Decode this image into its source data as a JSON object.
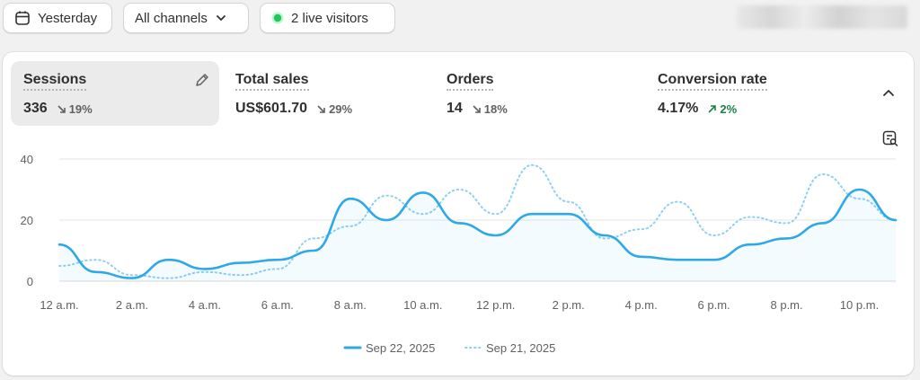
{
  "toolbar": {
    "date_label": "Yesterday",
    "channel_label": "All channels",
    "live_label": "2 live visitors"
  },
  "metrics": [
    {
      "label": "Sessions",
      "value": "336",
      "delta": "19%",
      "direction": "down"
    },
    {
      "label": "Total sales",
      "value": "US$601.70",
      "delta": "29%",
      "direction": "down"
    },
    {
      "label": "Orders",
      "value": "14",
      "delta": "18%",
      "direction": "down"
    },
    {
      "label": "Conversion rate",
      "value": "4.17%",
      "delta": "2%",
      "direction": "up"
    }
  ],
  "colors": {
    "current": "#2ea8e6",
    "previous": "#8fd0f0",
    "live_dot": "#22c55e",
    "up": "#1a8245",
    "grid": "#e6e6e6"
  },
  "chart_data": {
    "type": "line",
    "x": [
      0,
      1,
      2,
      3,
      4,
      5,
      6,
      7,
      8,
      9,
      10,
      11,
      12,
      13,
      14,
      15,
      16,
      17,
      18,
      19,
      20,
      21,
      22,
      23
    ],
    "x_tick_labels": [
      "12 a.m.",
      "2 a.m.",
      "4 a.m.",
      "6 a.m.",
      "8 a.m.",
      "10 a.m.",
      "12 p.m.",
      "2 p.m.",
      "4 p.m.",
      "6 p.m.",
      "8 p.m.",
      "10 p.m."
    ],
    "x_tick_hours": [
      0,
      2,
      4,
      6,
      8,
      10,
      12,
      14,
      16,
      18,
      20,
      22
    ],
    "y_ticks": [
      0,
      20,
      40
    ],
    "ylim": [
      0,
      40
    ],
    "series": [
      {
        "name": "Sep 22, 2025",
        "style": "solid",
        "values": [
          12,
          3,
          1,
          7,
          4,
          6,
          7,
          10,
          27,
          20,
          29,
          19,
          15,
          22,
          22,
          15,
          8,
          7,
          7,
          12,
          14,
          19,
          30,
          20
        ]
      },
      {
        "name": "Sep 21, 2025",
        "style": "dotted",
        "values": [
          5,
          7,
          2,
          1,
          3,
          2,
          4,
          14,
          18,
          28,
          22,
          30,
          22,
          38,
          26,
          14,
          17,
          26,
          15,
          21,
          19,
          35,
          27,
          20
        ]
      }
    ]
  }
}
